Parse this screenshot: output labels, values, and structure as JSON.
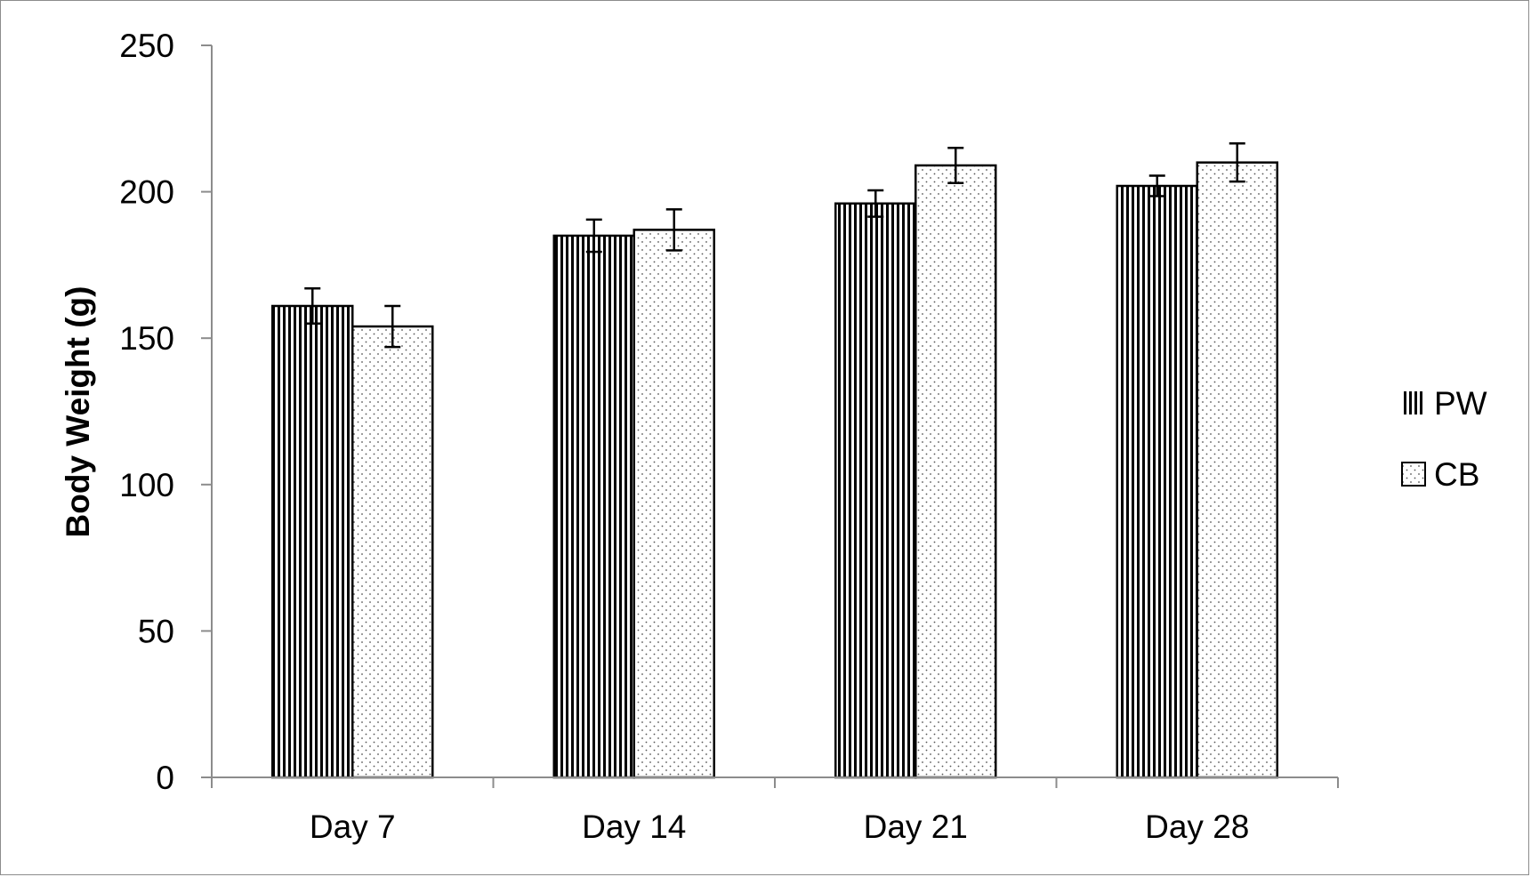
{
  "chart_data": {
    "type": "bar",
    "title": "",
    "xlabel": "",
    "ylabel": "Body Weight (g)",
    "ylim": [
      0,
      250
    ],
    "yticks": [
      0,
      50,
      100,
      150,
      200,
      250
    ],
    "categories": [
      "Day 7",
      "Day 14",
      "Day 21",
      "Day 28"
    ],
    "series": [
      {
        "name": "PW",
        "pattern": "vertical-stripes",
        "values": [
          161,
          185,
          196,
          202
        ],
        "errors": [
          6,
          5.5,
          4.5,
          3.5
        ]
      },
      {
        "name": "CB",
        "pattern": "dots",
        "values": [
          154,
          187,
          209,
          210
        ],
        "errors": [
          7,
          7,
          6,
          6.5
        ]
      }
    ],
    "grid": false,
    "legend_position": "right",
    "colors": {
      "bar_edge": "#000000",
      "fill": "#ffffff",
      "frame": "#8c8c8c",
      "axis": "#8c8c8c"
    }
  }
}
